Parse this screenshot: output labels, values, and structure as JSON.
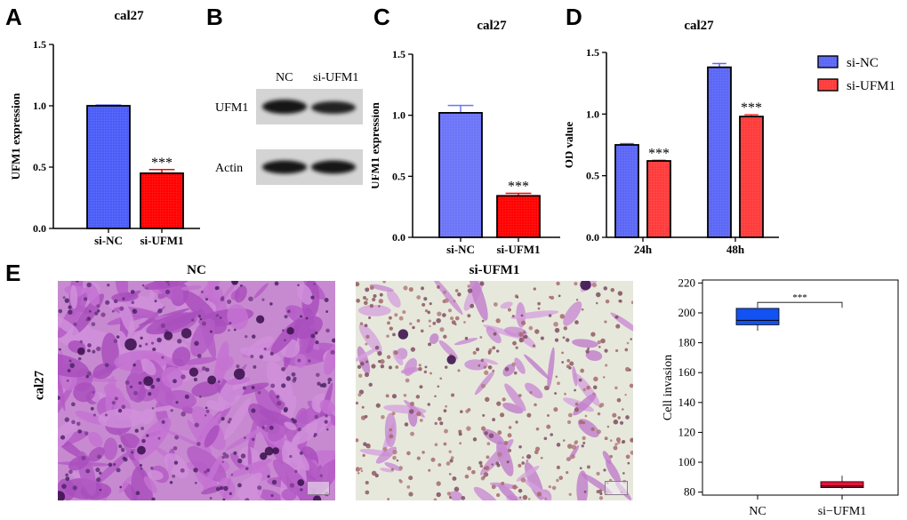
{
  "panels": {
    "a": {
      "letter": "A"
    },
    "b": {
      "letter": "B",
      "col_labels": [
        "NC",
        "si-UFM1"
      ],
      "row_labels": [
        "UFM1",
        "Actin"
      ]
    },
    "c": {
      "letter": "C"
    },
    "d": {
      "letter": "D"
    },
    "e": {
      "letter": "E",
      "image_titles": [
        "NC",
        "si-UFM1"
      ],
      "row_label": "cal27"
    }
  },
  "chart_data": [
    {
      "id": "A",
      "type": "bar",
      "title": "cal27",
      "categories": [
        "si-NC",
        "si-UFM1"
      ],
      "values": [
        1.0,
        0.45
      ],
      "errors": [
        0.005,
        0.03
      ],
      "significance": [
        "",
        "***"
      ],
      "ylabel": "UFM1 expression",
      "xlabel": "",
      "ylim": [
        0,
        1.5
      ],
      "yticks": [
        "0.0",
        "0.5",
        "1.0",
        "1.5"
      ],
      "colors": [
        "#4a5cf7",
        "#ff0000"
      ]
    },
    {
      "id": "C",
      "type": "bar",
      "title": "cal27",
      "categories": [
        "si-NC",
        "si-UFM1"
      ],
      "values": [
        1.02,
        0.34
      ],
      "errors": [
        0.06,
        0.02
      ],
      "significance": [
        "",
        "***"
      ],
      "ylabel": "UFM1 expression",
      "xlabel": "",
      "ylim": [
        0,
        1.5
      ],
      "yticks": [
        "0.0",
        "0.5",
        "1.0",
        "1.5"
      ],
      "colors": [
        "#6b74f8",
        "#ff0000"
      ]
    },
    {
      "id": "D",
      "type": "bar",
      "title": "cal27",
      "categories": [
        "24h",
        "48h"
      ],
      "series": [
        {
          "name": "si-NC",
          "values": [
            0.75,
            1.38
          ],
          "errors": [
            0.01,
            0.03
          ],
          "significance": [
            "",
            ""
          ]
        },
        {
          "name": "si-UFM1",
          "values": [
            0.62,
            0.98
          ],
          "errors": [
            0.005,
            0.015
          ],
          "significance": [
            "***",
            "***"
          ]
        }
      ],
      "ylabel": "OD value",
      "xlabel": "",
      "ylim": [
        0,
        1.5
      ],
      "yticks": [
        "0.0",
        "0.5",
        "1.0",
        "1.5"
      ],
      "colors": [
        "#5a66f6",
        "#ff3a3a"
      ],
      "legend": "right"
    },
    {
      "id": "E",
      "type": "box",
      "title": "",
      "categories": [
        "NC",
        "si−UFM1"
      ],
      "boxes": [
        {
          "min": 188,
          "q1": 192,
          "median": 195,
          "q3": 203,
          "max": 203
        },
        {
          "min": 82,
          "q1": 83,
          "median": 84,
          "q3": 87,
          "max": 91
        }
      ],
      "significance": "***",
      "ylabel": "Cell invasion",
      "xlabel": "",
      "ylim": [
        78,
        222
      ],
      "yticks": [
        "80",
        "100",
        "120",
        "140",
        "160",
        "180",
        "200",
        "220"
      ],
      "colors": [
        "#1352f2",
        "#e3143c"
      ]
    }
  ]
}
